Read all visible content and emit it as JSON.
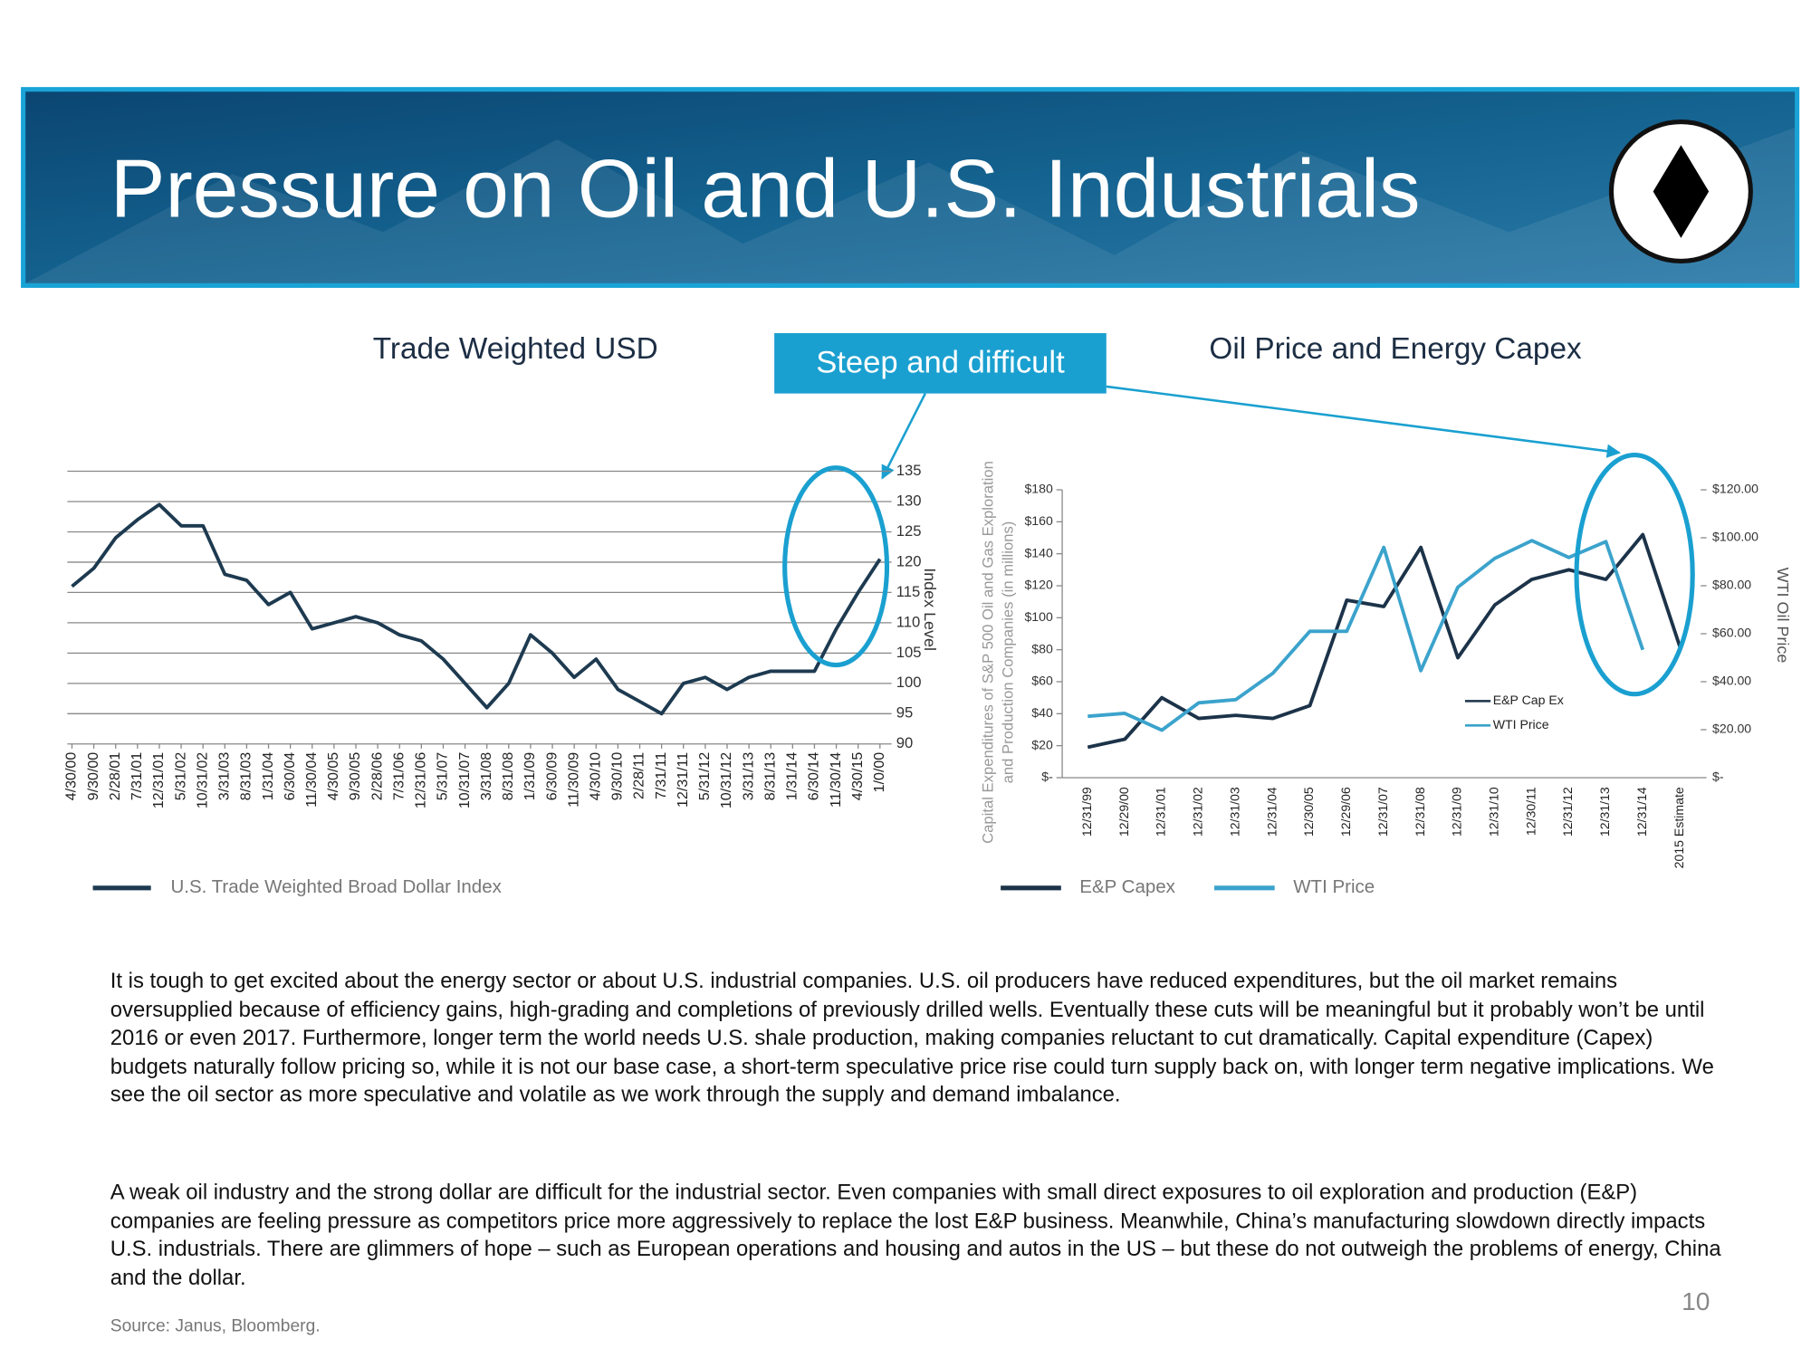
{
  "header": {
    "title": "Pressure on Oil and U.S. Industrials"
  },
  "callout": "Steep and difficult",
  "chart_data": [
    {
      "type": "line",
      "title": "Trade Weighted USD",
      "y_label": "Index Level",
      "categories": [
        "4/30/00",
        "9/30/00",
        "2/28/01",
        "7/31/01",
        "12/31/01",
        "5/31/02",
        "10/31/02",
        "3/31/03",
        "8/31/03",
        "1/31/04",
        "6/30/04",
        "11/30/04",
        "4/30/05",
        "9/30/05",
        "2/28/06",
        "7/31/06",
        "12/31/06",
        "5/31/07",
        "10/31/07",
        "3/31/08",
        "8/31/08",
        "1/31/09",
        "6/30/09",
        "11/30/09",
        "4/30/10",
        "9/30/10",
        "2/28/11",
        "7/31/11",
        "12/31/11",
        "5/31/12",
        "10/31/12",
        "3/31/13",
        "8/31/13",
        "1/31/14",
        "6/30/14",
        "11/30/14",
        "4/30/15",
        "1/0/00"
      ],
      "series": [
        {
          "name": "U.S. Trade Weighted Broad Dollar Index",
          "color": "#1d3a50",
          "values": [
            116,
            119,
            124,
            127,
            129.5,
            126,
            126,
            118,
            117,
            113,
            115,
            109,
            110,
            111,
            110,
            108,
            107,
            104,
            100,
            96,
            100,
            108,
            105,
            101,
            104,
            99,
            97,
            95,
            100,
            101,
            99,
            101,
            102,
            102,
            102,
            109,
            115,
            120.5
          ]
        }
      ],
      "ylim": [
        90,
        135
      ],
      "yticks": [
        90,
        95,
        100,
        105,
        110,
        115,
        120,
        125,
        130,
        135
      ],
      "y_axis_side": "right",
      "grid": true,
      "legend": "bottom"
    },
    {
      "type": "line",
      "title": "Oil Price and Energy Capex",
      "y_label": [
        "Capital Expenditures of S&P 500 Oil and Gas Exploration",
        "and Production Companies (in millions)"
      ],
      "y2_label": "WTI Oil Price",
      "categories": [
        "12/31/99",
        "12/29/00",
        "12/31/01",
        "12/31/02",
        "12/31/03",
        "12/31/04",
        "12/30/05",
        "12/29/06",
        "12/31/07",
        "12/31/08",
        "12/31/09",
        "12/31/10",
        "12/30/11",
        "12/31/12",
        "12/31/13",
        "12/31/14",
        "2015 Estimate"
      ],
      "series": [
        {
          "name": "E&P Capex",
          "color": "#1c3349",
          "values": [
            19,
            24,
            50,
            37,
            39,
            37,
            45,
            111,
            107,
            144,
            75,
            108,
            124,
            130,
            124,
            152,
            82
          ]
        },
        {
          "name": "WTI Price",
          "color": "#3ba3cc",
          "axis": "y2",
          "values": [
            25.6,
            26.8,
            19.8,
            31.2,
            32.5,
            43.5,
            61,
            61,
            96,
            44.6,
            79.4,
            91.4,
            98.8,
            91.8,
            98.4,
            53.3,
            null
          ]
        }
      ],
      "inner_legend": [
        "E&P Cap Ex",
        "WTI Price"
      ],
      "ylim": [
        0,
        180
      ],
      "yticks": [
        {
          "value": 0,
          "label": "$-"
        },
        {
          "value": 20,
          "label": "$20"
        },
        {
          "value": 40,
          "label": "$40"
        },
        {
          "value": 60,
          "label": "$60"
        },
        {
          "value": 80,
          "label": "$80"
        },
        {
          "value": 100,
          "label": "$100"
        },
        {
          "value": 120,
          "label": "$120"
        },
        {
          "value": 140,
          "label": "$140"
        },
        {
          "value": 160,
          "label": "$160"
        },
        {
          "value": 180,
          "label": "$180"
        }
      ],
      "y2lim": [
        0,
        120
      ],
      "y2ticks": [
        {
          "value": 0,
          "label": "$-"
        },
        {
          "value": 20,
          "label": "$20.00"
        },
        {
          "value": 40,
          "label": "$40.00"
        },
        {
          "value": 60,
          "label": "$60.00"
        },
        {
          "value": 80,
          "label": "$80.00"
        },
        {
          "value": 100,
          "label": "$100.00"
        },
        {
          "value": 120,
          "label": "$120.00"
        }
      ],
      "grid": false,
      "legend": "bottom"
    }
  ],
  "body": [
    "It is tough to get excited about the energy sector or about U.S. industrial companies. U.S. oil producers have reduced expenditures, but the oil market remains oversupplied because of efficiency gains, high-grading and completions of previously drilled wells. Eventually these cuts will be meaningful but it probably won’t be until 2016 or even 2017. Furthermore, longer term the world needs U.S. shale production, making companies reluctant to cut dramatically. Capital expenditure (Capex) budgets naturally follow pricing so, while it is not our base case, a short-term speculative price rise could turn supply back on, with longer term negative implications. We see the oil sector as more speculative and volatile as we work through the supply and demand imbalance.",
    "A weak oil industry and the strong dollar are difficult for the industrial sector. Even companies with small direct exposures to oil exploration and production (E&P) companies are feeling pressure as competitors price more aggressively to replace the lost E&P business. Meanwhile, China’s manufacturing slowdown directly impacts U.S. industrials. There are glimmers of hope – such as European operations and housing and autos in the US – but these do not outweigh the problems of energy, China and the dollar."
  ],
  "source": "Source: Janus, Bloomberg.",
  "page_number": "10"
}
